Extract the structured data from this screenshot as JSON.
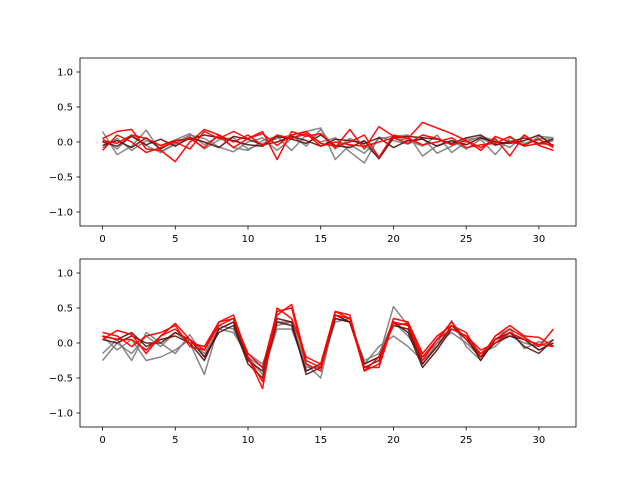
{
  "chart_data": [
    {
      "type": "line",
      "title": "",
      "xlabel": "",
      "ylabel": "",
      "xlim": [
        -1.55,
        32.55
      ],
      "ylim": [
        -1.2,
        1.2
      ],
      "xticks": [
        0,
        5,
        10,
        15,
        20,
        25,
        30
      ],
      "xtick_labels": [
        "0",
        "5",
        "10",
        "15",
        "20",
        "25",
        "30"
      ],
      "yticks": [
        -1.0,
        -0.5,
        0.0,
        0.5,
        1.0
      ],
      "ytick_labels": [
        "−1.0",
        "−0.5",
        "0.0",
        "0.5",
        "1.0"
      ],
      "grid": false,
      "x": [
        0,
        1,
        2,
        3,
        4,
        5,
        6,
        7,
        8,
        9,
        10,
        11,
        12,
        13,
        14,
        15,
        16,
        17,
        18,
        19,
        20,
        21,
        22,
        23,
        24,
        25,
        26,
        27,
        28,
        29,
        30,
        31
      ],
      "series": [
        {
          "color": "#7a7a7a",
          "values": [
            0.15,
            -0.18,
            -0.06,
            0.17,
            -0.14,
            -0.02,
            0.1,
            0.05,
            -0.07,
            -0.14,
            0.0,
            0.06,
            -0.12,
            0.05,
            0.15,
            0.2,
            -0.25,
            -0.04,
            -0.16,
            0.05,
            0.08,
            0.1,
            -0.2,
            -0.05,
            0.02,
            -0.1,
            0.04,
            -0.18,
            0.06,
            -0.02,
            0.05,
            0.04
          ]
        },
        {
          "color": "#7a7a7a",
          "values": [
            -0.08,
            0.05,
            -0.12,
            0.02,
            -0.05,
            0.03,
            0.12,
            -0.04,
            0.08,
            -0.08,
            -0.12,
            0.02,
            0.08,
            -0.12,
            0.1,
            0.0,
            0.06,
            -0.14,
            -0.3,
            0.07,
            0.02,
            -0.03,
            0.06,
            -0.16,
            -0.06,
            0.04,
            0.06,
            -0.05,
            0.02,
            -0.06,
            0.08,
            0.06
          ]
        },
        {
          "color": "#7a7a7a",
          "values": [
            0.05,
            -0.1,
            0.1,
            -0.05,
            -0.15,
            -0.03,
            0.08,
            -0.1,
            0.03,
            0.06,
            -0.1,
            -0.02,
            0.05,
            0.1,
            -0.06,
            0.18,
            -0.1,
            0.05,
            -0.04,
            -0.22,
            0.06,
            0.02,
            -0.06,
            0.1,
            -0.15,
            0.0,
            0.08,
            0.02,
            -0.08,
            0.1,
            -0.04,
            0.02
          ]
        },
        {
          "color": "#5a1010",
          "values": [
            -0.05,
            0.02,
            -0.08,
            0.06,
            -0.1,
            0.02,
            0.04,
            0.1,
            0.06,
            0.02,
            -0.04,
            -0.06,
            0.08,
            0.04,
            -0.02,
            0.1,
            -0.05,
            -0.08,
            0.02,
            -0.24,
            0.06,
            0.08,
            0.06,
            0.04,
            -0.02,
            0.06,
            0.1,
            -0.04,
            0.0,
            0.06,
            -0.02,
            0.04
          ]
        },
        {
          "color": "#5a1010",
          "values": [
            0.0,
            -0.06,
            0.08,
            -0.04,
            0.04,
            -0.06,
            0.06,
            0.0,
            -0.08,
            0.08,
            0.04,
            -0.04,
            0.0,
            0.08,
            0.02,
            -0.06,
            0.04,
            0.02,
            -0.02,
            0.06,
            -0.08,
            0.02,
            0.04,
            -0.06,
            0.02,
            -0.04,
            0.06,
            0.0,
            -0.02,
            0.02,
            0.1,
            -0.06
          ]
        },
        {
          "color": "#ff0000",
          "values": [
            0.05,
            0.15,
            0.18,
            -0.1,
            -0.12,
            -0.28,
            0.0,
            0.18,
            0.1,
            -0.08,
            0.05,
            0.15,
            -0.25,
            0.15,
            0.08,
            0.12,
            -0.08,
            0.18,
            -0.1,
            0.22,
            0.08,
            0.05,
            0.28,
            0.2,
            0.12,
            0.02,
            -0.08,
            0.05,
            -0.2,
            0.1,
            -0.05,
            -0.12
          ]
        },
        {
          "color": "#ff0000",
          "values": [
            -0.12,
            0.1,
            0.0,
            -0.15,
            -0.08,
            0.0,
            -0.1,
            0.15,
            0.05,
            0.15,
            0.05,
            0.12,
            -0.05,
            0.1,
            0.15,
            -0.02,
            -0.06,
            0.0,
            0.1,
            -0.22,
            0.1,
            0.05,
            -0.04,
            0.0,
            0.06,
            -0.08,
            -0.04,
            -0.02,
            0.08,
            -0.06,
            -0.02,
            -0.04
          ]
        },
        {
          "color": "#ff0000",
          "values": [
            0.02,
            -0.02,
            0.1,
            0.05,
            -0.05,
            0.02,
            0.05,
            -0.08,
            0.1,
            0.0,
            0.1,
            -0.05,
            0.1,
            0.05,
            0.12,
            -0.06,
            0.0,
            -0.04,
            -0.06,
            0.0,
            0.06,
            -0.02,
            0.1,
            0.05,
            -0.04,
            0.02,
            -0.12,
            0.08,
            0.0,
            -0.04,
            0.04,
            -0.08
          ]
        }
      ]
    },
    {
      "type": "line",
      "title": "",
      "xlabel": "",
      "ylabel": "",
      "xlim": [
        -1.55,
        32.55
      ],
      "ylim": [
        -1.2,
        1.2
      ],
      "xticks": [
        0,
        5,
        10,
        15,
        20,
        25,
        30
      ],
      "xtick_labels": [
        "0",
        "5",
        "10",
        "15",
        "20",
        "25",
        "30"
      ],
      "yticks": [
        -1.0,
        -0.5,
        0.0,
        0.5,
        1.0
      ],
      "ytick_labels": [
        "−1.0",
        "−0.5",
        "0.0",
        "0.5",
        "1.0"
      ],
      "grid": false,
      "x": [
        0,
        1,
        2,
        3,
        4,
        5,
        6,
        7,
        8,
        9,
        10,
        11,
        12,
        13,
        14,
        15,
        16,
        17,
        18,
        19,
        20,
        21,
        22,
        23,
        24,
        25,
        26,
        27,
        28,
        29,
        30,
        31
      ],
      "series": [
        {
          "color": "#7a7a7a",
          "values": [
            -0.25,
            0.0,
            -0.15,
            0.1,
            -0.05,
            0.15,
            0.0,
            -0.45,
            0.25,
            0.2,
            -0.2,
            -0.35,
            0.3,
            0.3,
            -0.3,
            -0.5,
            0.4,
            0.3,
            -0.3,
            -0.2,
            0.52,
            0.25,
            -0.3,
            0.0,
            0.32,
            -0.05,
            -0.25,
            0.1,
            0.2,
            -0.08,
            0.02,
            -0.04
          ]
        },
        {
          "color": "#7a7a7a",
          "values": [
            0.1,
            -0.1,
            0.05,
            -0.25,
            -0.2,
            -0.1,
            0.05,
            -0.15,
            0.2,
            0.15,
            -0.2,
            -0.45,
            0.2,
            0.2,
            -0.35,
            -0.35,
            0.3,
            0.35,
            -0.3,
            -0.05,
            0.1,
            -0.05,
            -0.25,
            -0.05,
            0.2,
            0.1,
            -0.15,
            -0.05,
            0.15,
            0.05,
            -0.1,
            0.0
          ]
        },
        {
          "color": "#7a7a7a",
          "values": [
            -0.15,
            0.05,
            -0.25,
            0.15,
            0.0,
            -0.15,
            0.12,
            -0.2,
            0.2,
            0.3,
            -0.15,
            -0.3,
            0.25,
            0.3,
            -0.4,
            -0.3,
            0.35,
            0.3,
            -0.25,
            -0.15,
            0.3,
            0.1,
            -0.2,
            0.0,
            0.15,
            0.0,
            -0.2,
            0.05,
            0.1,
            0.0,
            -0.05,
            0.05
          ]
        },
        {
          "color": "#5a1010",
          "values": [
            0.1,
            0.05,
            0.15,
            -0.05,
            0.05,
            0.1,
            0.0,
            -0.25,
            0.2,
            0.3,
            -0.25,
            -0.4,
            0.35,
            0.3,
            -0.45,
            -0.35,
            0.35,
            0.3,
            -0.35,
            -0.25,
            0.3,
            0.15,
            -0.35,
            -0.1,
            0.2,
            0.1,
            -0.25,
            0.05,
            0.15,
            -0.05,
            -0.15,
            0.05
          ]
        },
        {
          "color": "#5a1010",
          "values": [
            0.05,
            0.0,
            0.1,
            0.0,
            0.0,
            0.15,
            0.05,
            -0.2,
            0.15,
            0.25,
            -0.3,
            -0.5,
            0.3,
            0.25,
            -0.4,
            -0.3,
            0.4,
            0.3,
            -0.3,
            -0.2,
            0.25,
            0.2,
            -0.3,
            -0.05,
            0.25,
            0.05,
            -0.2,
            0.0,
            0.1,
            0.05,
            -0.1,
            0.0
          ]
        },
        {
          "color": "#ff0000",
          "values": [
            0.15,
            0.1,
            -0.05,
            0.1,
            0.15,
            0.25,
            -0.05,
            -0.1,
            0.3,
            0.4,
            -0.2,
            -0.65,
            0.5,
            0.35,
            -0.2,
            -0.3,
            0.45,
            0.4,
            -0.4,
            -0.3,
            0.35,
            0.3,
            -0.15,
            0.1,
            0.25,
            0.15,
            -0.2,
            0.1,
            0.25,
            0.1,
            0.08,
            -0.05
          ]
        },
        {
          "color": "#ff0000",
          "values": [
            0.05,
            0.18,
            0.12,
            -0.15,
            0.1,
            0.28,
            0.05,
            -0.1,
            0.25,
            0.35,
            -0.2,
            -0.55,
            0.4,
            0.55,
            -0.25,
            -0.35,
            0.4,
            0.35,
            -0.35,
            -0.35,
            0.3,
            0.25,
            -0.25,
            0.05,
            0.3,
            0.05,
            -0.15,
            0.05,
            0.2,
            0.08,
            -0.05,
            0.2
          ]
        },
        {
          "color": "#ff0000",
          "values": [
            0.1,
            0.05,
            0.05,
            -0.1,
            0.1,
            0.2,
            0.0,
            -0.05,
            0.3,
            0.35,
            -0.15,
            -0.35,
            0.45,
            0.5,
            -0.3,
            -0.4,
            0.45,
            0.35,
            -0.4,
            -0.2,
            0.25,
            0.28,
            -0.2,
            0.05,
            0.2,
            0.1,
            -0.1,
            0.0,
            0.15,
            0.05,
            -0.02,
            -0.05
          ]
        }
      ]
    }
  ]
}
